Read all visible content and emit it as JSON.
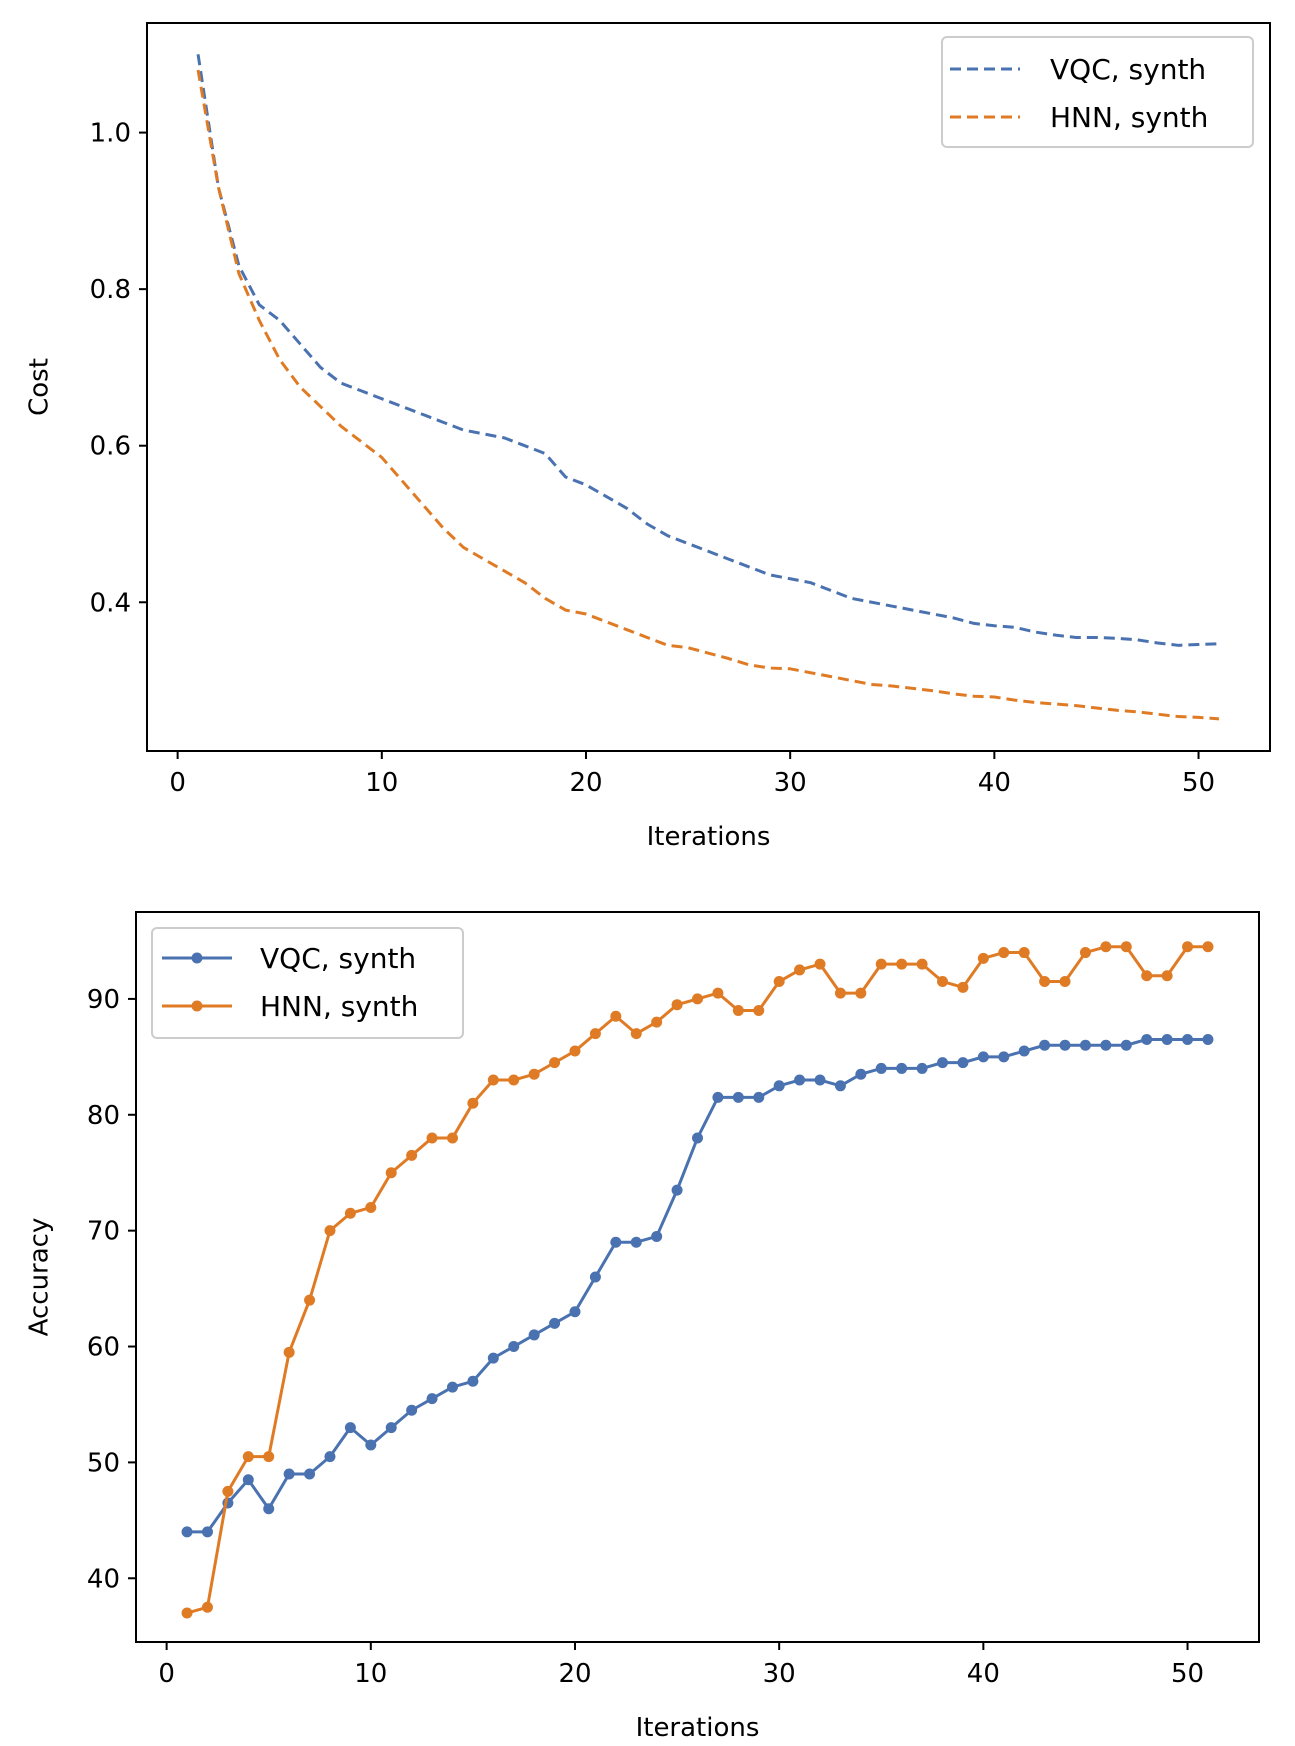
{
  "colors": {
    "vqc": "#4a72b0",
    "hnn": "#e07b25"
  },
  "chart_data": [
    {
      "type": "line",
      "xlabel": "Iterations",
      "ylabel": "Cost",
      "xlim": [
        -1.5,
        53.5
      ],
      "ylim": [
        0.21,
        1.14
      ],
      "xticks": [
        0,
        10,
        20,
        30,
        40,
        50
      ],
      "yticks": [
        0.4,
        0.6,
        0.8,
        1.0
      ],
      "xtick_labels": [
        "0",
        "10",
        "20",
        "30",
        "40",
        "50"
      ],
      "ytick_labels": [
        "0.4",
        "0.6",
        "0.8",
        "1.0"
      ],
      "line_style": "dashed",
      "markers": false,
      "grid": false,
      "legend_position": "top-right",
      "x": [
        1,
        2,
        3,
        4,
        5,
        6,
        7,
        8,
        9,
        10,
        11,
        12,
        13,
        14,
        15,
        16,
        17,
        18,
        19,
        20,
        21,
        22,
        23,
        24,
        25,
        26,
        27,
        28,
        29,
        30,
        31,
        32,
        33,
        34,
        35,
        36,
        37,
        38,
        39,
        40,
        41,
        42,
        43,
        44,
        45,
        46,
        47,
        48,
        49,
        50,
        51
      ],
      "series": [
        {
          "name": "VQC, synth",
          "color": "#4a72b0",
          "values": [
            1.1,
            0.93,
            0.83,
            0.78,
            0.76,
            0.73,
            0.7,
            0.68,
            0.67,
            0.66,
            0.65,
            0.64,
            0.63,
            0.62,
            0.615,
            0.61,
            0.6,
            0.59,
            0.56,
            0.55,
            0.535,
            0.52,
            0.5,
            0.485,
            0.475,
            0.465,
            0.455,
            0.445,
            0.435,
            0.43,
            0.425,
            0.415,
            0.405,
            0.4,
            0.395,
            0.39,
            0.385,
            0.38,
            0.373,
            0.37,
            0.368,
            0.362,
            0.358,
            0.355,
            0.355,
            0.354,
            0.352,
            0.348,
            0.345,
            0.346,
            0.347
          ]
        },
        {
          "name": "HNN, synth",
          "color": "#e07b25",
          "values": [
            1.08,
            0.93,
            0.82,
            0.76,
            0.71,
            0.675,
            0.65,
            0.625,
            0.605,
            0.585,
            0.555,
            0.525,
            0.495,
            0.47,
            0.455,
            0.44,
            0.425,
            0.405,
            0.39,
            0.385,
            0.375,
            0.365,
            0.355,
            0.345,
            0.342,
            0.335,
            0.328,
            0.32,
            0.316,
            0.315,
            0.31,
            0.305,
            0.3,
            0.295,
            0.293,
            0.29,
            0.287,
            0.283,
            0.28,
            0.279,
            0.275,
            0.272,
            0.27,
            0.268,
            0.265,
            0.262,
            0.26,
            0.257,
            0.254,
            0.253,
            0.251
          ]
        }
      ]
    },
    {
      "type": "line",
      "xlabel": "Iterations",
      "ylabel": "Accuracy",
      "xlim": [
        -1.5,
        53.5
      ],
      "ylim": [
        34.5,
        97.5
      ],
      "xticks": [
        0,
        10,
        20,
        30,
        40,
        50
      ],
      "yticks": [
        40,
        50,
        60,
        70,
        80,
        90
      ],
      "xtick_labels": [
        "0",
        "10",
        "20",
        "30",
        "40",
        "50"
      ],
      "ytick_labels": [
        "40",
        "50",
        "60",
        "70",
        "80",
        "90"
      ],
      "line_style": "solid",
      "markers": true,
      "grid": false,
      "legend_position": "top-left",
      "x": [
        1,
        2,
        3,
        4,
        5,
        6,
        7,
        8,
        9,
        10,
        11,
        12,
        13,
        14,
        15,
        16,
        17,
        18,
        19,
        20,
        21,
        22,
        23,
        24,
        25,
        26,
        27,
        28,
        29,
        30,
        31,
        32,
        33,
        34,
        35,
        36,
        37,
        38,
        39,
        40,
        41,
        42,
        43,
        44,
        45,
        46,
        47,
        48,
        49,
        50,
        51
      ],
      "series": [
        {
          "name": "VQC, synth",
          "color": "#4a72b0",
          "values": [
            44,
            44,
            46.5,
            48.5,
            46,
            49,
            49,
            50.5,
            53,
            51.5,
            53,
            54.5,
            55.5,
            56.5,
            57,
            59,
            60,
            61,
            62,
            63,
            66,
            69,
            69,
            69.5,
            73.5,
            78,
            81.5,
            81.5,
            81.5,
            82.5,
            83,
            83,
            82.5,
            83.5,
            84,
            84,
            84,
            84.5,
            84.5,
            85,
            85,
            85.5,
            86,
            86,
            86,
            86,
            86,
            86.5,
            86.5,
            86.5,
            86.5
          ]
        },
        {
          "name": "HNN, synth",
          "color": "#e07b25",
          "values": [
            37,
            37.5,
            47.5,
            50.5,
            50.5,
            59.5,
            64,
            70,
            71.5,
            72,
            75,
            76.5,
            78,
            78,
            81,
            83,
            83,
            83.5,
            84.5,
            85.5,
            87,
            88.5,
            87,
            88,
            89.5,
            90,
            90.5,
            89,
            89,
            91.5,
            92.5,
            93,
            90.5,
            90.5,
            93,
            93,
            93,
            91.5,
            91,
            93.5,
            94,
            94,
            91.5,
            91.5,
            94,
            94.5,
            94.5,
            92,
            92,
            94.5,
            94.5
          ]
        }
      ]
    }
  ]
}
